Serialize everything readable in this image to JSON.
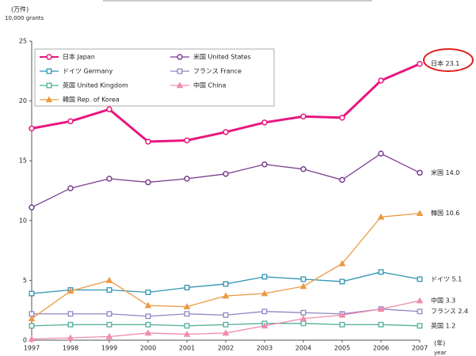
{
  "chart_data": {
    "type": "line",
    "y_unit_label": "(万件)",
    "y_unit_label_en": "10,000 grants",
    "x_unit_label": "(年)",
    "x_unit_label_en": "year",
    "categories": [
      "1997",
      "1998",
      "1999",
      "2000",
      "2001",
      "2002",
      "2003",
      "2004",
      "2005",
      "2006",
      "2007"
    ],
    "ylim": [
      0,
      25
    ],
    "yticks": [
      0,
      5,
      10,
      15,
      20,
      25
    ],
    "grid": false,
    "legend": "upper left",
    "series": [
      {
        "name": "日本 Japan",
        "color": "#e8167f",
        "marker": "circle",
        "width": 3,
        "end_label": "日本 23.1",
        "values": [
          17.7,
          18.3,
          19.3,
          16.6,
          16.7,
          17.4,
          18.2,
          18.7,
          18.6,
          21.7,
          23.1
        ]
      },
      {
        "name": "米国 United States",
        "color": "#7a3f8f",
        "marker": "circle",
        "width": 1.3,
        "end_label": "米国 14.0",
        "values": [
          11.1,
          12.7,
          13.5,
          13.2,
          13.5,
          13.9,
          14.7,
          14.3,
          13.4,
          15.6,
          14.0
        ]
      },
      {
        "name": "ドイツ Germany",
        "color": "#2f95b0",
        "marker": "square",
        "width": 1.3,
        "end_label": "ドイツ 5.1",
        "values": [
          3.9,
          4.2,
          4.2,
          4.0,
          4.4,
          4.7,
          5.3,
          5.1,
          4.9,
          5.7,
          5.1
        ]
      },
      {
        "name": "フランス France",
        "color": "#8f86c4",
        "marker": "square",
        "width": 1.3,
        "end_label": "フランス 2.4",
        "values": [
          2.2,
          2.2,
          2.2,
          2.0,
          2.2,
          2.1,
          2.4,
          2.3,
          2.2,
          2.6,
          2.4
        ]
      },
      {
        "name": "英国 United Kingdom",
        "color": "#4fae98",
        "marker": "square",
        "width": 1.3,
        "end_label": "英国 1.2",
        "values": [
          1.2,
          1.3,
          1.3,
          1.3,
          1.2,
          1.3,
          1.4,
          1.4,
          1.3,
          1.3,
          1.2
        ]
      },
      {
        "name": "中国 China",
        "color": "#f08cae",
        "marker": "triangle",
        "width": 1.3,
        "end_label": "中国 3.3",
        "values": [
          0.1,
          0.2,
          0.3,
          0.6,
          0.5,
          0.6,
          1.2,
          1.8,
          2.1,
          2.6,
          3.3
        ]
      },
      {
        "name": "韓国 Rep. of Korea",
        "color": "#ec9a45",
        "marker": "triangle",
        "width": 1.3,
        "end_label": "韓国 10.6",
        "values": [
          1.8,
          4.1,
          5.0,
          2.9,
          2.8,
          3.7,
          3.9,
          4.5,
          6.4,
          10.3,
          10.6
        ]
      }
    ]
  }
}
